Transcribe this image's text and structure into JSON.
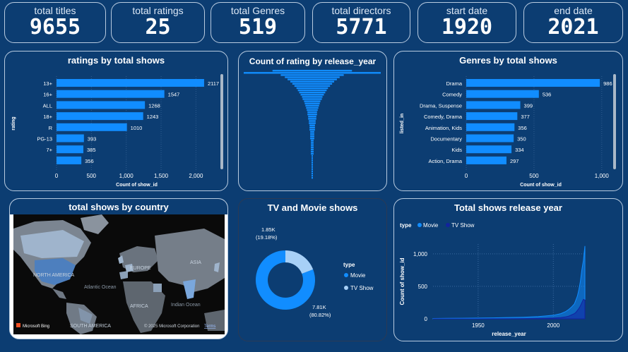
{
  "kpis": [
    {
      "label": "total titles",
      "value": "9655"
    },
    {
      "label": "total ratings",
      "value": "25"
    },
    {
      "label": "total Genres",
      "value": "519"
    },
    {
      "label": "total directors",
      "value": "5771"
    },
    {
      "label": "start date",
      "value": "1920"
    },
    {
      "label": "end date",
      "value": "2021"
    }
  ],
  "panels": {
    "ratings": "ratings by total shows",
    "release_year_count": "Count of rating by release_year",
    "genres": "Genres by total shows",
    "country": "total shows by country",
    "tv_movie": "TV and Movie shows",
    "release_trend": "Total shows release year"
  },
  "map": {
    "labels": [
      "NORTH AMERICA",
      "Atlantic Ocean",
      "EUROPE",
      "ASIA",
      "AFRICA",
      "Indian Ocean",
      "SOUTH AMERICA"
    ],
    "bing": "Microsoft Bing",
    "copyright": "© 2025 Microsoft Corporation",
    "terms": "Terms"
  },
  "chart_data": [
    {
      "type": "bar",
      "orientation": "horizontal",
      "title": "ratings by total shows",
      "ylabel": "rating",
      "xlabel": "Count of show_id",
      "categories": [
        "13+",
        "16+",
        "ALL",
        "18+",
        "R",
        "PG-13",
        "7+",
        ""
      ],
      "values": [
        2117,
        1547,
        1268,
        1243,
        1010,
        393,
        385,
        356
      ],
      "xlim": [
        0,
        2300
      ],
      "xticks": [
        "0",
        "500",
        "1,000",
        "1,500",
        "2,000"
      ],
      "xtick_values": [
        0,
        500,
        1000,
        1500,
        2000
      ],
      "color": "#118dff"
    },
    {
      "type": "bar",
      "orientation": "horizontal",
      "title": "Count of rating by release_year",
      "values": [
        58,
        100,
        46,
        40,
        36,
        32,
        29,
        26,
        23,
        21,
        19,
        17,
        15,
        14,
        12,
        11,
        10,
        9,
        8,
        7,
        7,
        6,
        6,
        5,
        5,
        4,
        4,
        4,
        3,
        3,
        3,
        3,
        2,
        2,
        2,
        2,
        2,
        2,
        2,
        1,
        1,
        1,
        1,
        1,
        1,
        1,
        1,
        1,
        1,
        1
      ],
      "color": "#118dff"
    },
    {
      "type": "bar",
      "orientation": "horizontal",
      "title": "Genres by total shows",
      "ylabel": "listed_in",
      "xlabel": "Count of show_id",
      "categories": [
        "Drama",
        "Comedy",
        "Drama, Suspense",
        "Comedy, Drama",
        "Animation, Kids",
        "Documentary",
        "Kids",
        "Action, Drama"
      ],
      "values": [
        986,
        536,
        399,
        377,
        356,
        350,
        334,
        297
      ],
      "xlim": [
        0,
        1100
      ],
      "xticks": [
        "0",
        "500",
        "1,000"
      ],
      "xtick_values": [
        0,
        500,
        1000
      ],
      "color": "#118dff"
    },
    {
      "type": "pie",
      "title": "TV and Movie shows",
      "legend_title": "type",
      "slices": [
        {
          "name": "Movie",
          "value": 7.81,
          "label": "7.81K",
          "pct": "(80.82%)",
          "color": "#118dff"
        },
        {
          "name": "TV Show",
          "value": 1.85,
          "label": "1.85K",
          "pct": "(19.18%)",
          "color": "#a7d0f7"
        }
      ]
    },
    {
      "type": "area",
      "title": "Total shows release year",
      "legend_title": "type",
      "xlabel": "release_year",
      "ylabel": "Count of show_id",
      "xlim": [
        1920,
        2021
      ],
      "ylim": [
        0,
        1150
      ],
      "xticks": [
        "1950",
        "2000"
      ],
      "xtick_values": [
        1950,
        2000
      ],
      "yticks": [
        "0",
        "500",
        "1,000"
      ],
      "ytick_values": [
        0,
        500,
        1000
      ],
      "x": [
        1920,
        1930,
        1940,
        1950,
        1960,
        1970,
        1980,
        1990,
        1995,
        2000,
        2005,
        2008,
        2010,
        2012,
        2014,
        2015,
        2016,
        2017,
        2018,
        2019,
        2020,
        2021
      ],
      "series": [
        {
          "name": "Movie",
          "color": "#118dff",
          "values": [
            5,
            8,
            10,
            12,
            15,
            20,
            25,
            35,
            45,
            55,
            80,
            110,
            140,
            180,
            230,
            290,
            350,
            450,
            580,
            760,
            900,
            1120
          ]
        },
        {
          "name": "TV Show",
          "color": "#12239e",
          "values": [
            0,
            0,
            0,
            0,
            1,
            2,
            3,
            5,
            8,
            12,
            20,
            30,
            40,
            60,
            80,
            100,
            130,
            160,
            200,
            250,
            300,
            290
          ]
        }
      ]
    }
  ]
}
